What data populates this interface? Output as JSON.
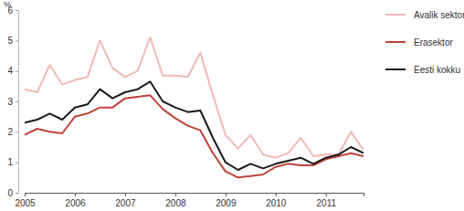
{
  "chart_data": {
    "type": "line",
    "y_label": "%",
    "x": [
      2005,
      2005.25,
      2005.5,
      2005.75,
      2006,
      2006.25,
      2006.5,
      2006.75,
      2007,
      2007.25,
      2007.5,
      2007.75,
      2008,
      2008.25,
      2008.5,
      2008.75,
      2009,
      2009.25,
      2009.5,
      2009.75,
      2010,
      2010.25,
      2010.5,
      2010.75,
      2011,
      2011.25,
      2011.5,
      2011.75
    ],
    "xlim": [
      2005,
      2011.75
    ],
    "xticks": [
      2005,
      2006,
      2007,
      2008,
      2009,
      2010,
      2011
    ],
    "ylim": [
      0,
      6
    ],
    "yticks": [
      0,
      1,
      2,
      3,
      4,
      5,
      6
    ],
    "grid": false,
    "legend": "top-right",
    "series": [
      {
        "name": "Avalik sektor",
        "color": "#f2b8b6",
        "values": [
          3.4,
          3.3,
          4.2,
          3.55,
          3.7,
          3.8,
          5.0,
          4.1,
          3.8,
          4.0,
          5.1,
          3.85,
          3.85,
          3.8,
          4.6,
          3.2,
          1.9,
          1.45,
          1.9,
          1.25,
          1.15,
          1.3,
          1.8,
          1.2,
          1.25,
          1.25,
          2.0,
          1.4
        ]
      },
      {
        "name": "Erasektor",
        "color": "#c0433a",
        "values": [
          1.9,
          2.1,
          2.0,
          1.95,
          2.5,
          2.6,
          2.8,
          2.8,
          3.1,
          3.15,
          3.2,
          2.75,
          2.45,
          2.2,
          2.05,
          1.3,
          0.7,
          0.5,
          0.55,
          0.6,
          0.85,
          0.95,
          0.9,
          0.9,
          1.1,
          1.2,
          1.3,
          1.2
        ]
      },
      {
        "name": "Eesti kokku",
        "color": "#1a1a1a",
        "values": [
          2.3,
          2.4,
          2.6,
          2.4,
          2.8,
          2.9,
          3.4,
          3.1,
          3.3,
          3.4,
          3.65,
          3.0,
          2.8,
          2.65,
          2.7,
          1.8,
          1.0,
          0.75,
          0.95,
          0.8,
          0.95,
          1.05,
          1.15,
          0.95,
          1.15,
          1.25,
          1.5,
          1.3
        ]
      }
    ]
  }
}
